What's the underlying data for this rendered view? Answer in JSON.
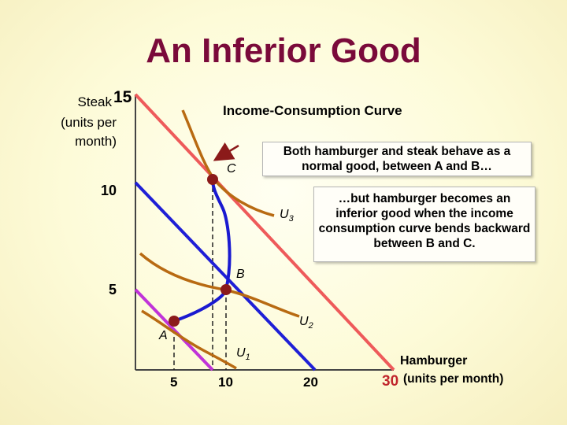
{
  "title": "An Inferior Good",
  "y_axis": {
    "label_line1": "Steak",
    "label_line2": "(units per",
    "label_line3": "month)"
  },
  "x_axis": {
    "label_line1": "Hamburger",
    "label_line2": "(units per month)"
  },
  "y_ticks": [
    "15",
    "10",
    "5"
  ],
  "x_ticks": [
    "5",
    "10",
    "20",
    "30"
  ],
  "curve_title": "Income-Consumption Curve",
  "notes": {
    "normal_good": "Both hamburger and steak behave as a normal good,  between A and B…",
    "inferior_good": "…but hamburger becomes an inferior good when the income consumption curve bends backward  between B and C."
  },
  "points": [
    {
      "name": "A",
      "label": "A"
    },
    {
      "name": "B",
      "label": "B"
    },
    {
      "name": "C",
      "label": "C"
    }
  ],
  "indifference_curves": [
    {
      "label": "U",
      "sub": "1"
    },
    {
      "label": "U",
      "sub": "2"
    },
    {
      "label": "U",
      "sub": "3"
    }
  ],
  "colors": {
    "title": "#7a0a3a",
    "budget_line_1": "#c033d8",
    "budget_line_2": "#1f1fd6",
    "budget_line_3": "#ee5a5a",
    "indifference": "#b86a12",
    "icc": "#1a1ad0",
    "point": "#8b1a1a",
    "arrow": "#8b1a1a"
  }
}
